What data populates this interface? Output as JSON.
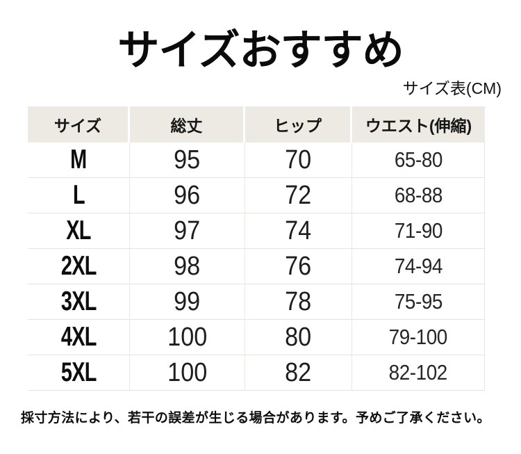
{
  "page": {
    "title": "サイズおすすめ",
    "unit_label": "サイズ表(CM)",
    "note": "採寸方法により、若干の誤差が生じる場合があります。予めご了承ください。"
  },
  "chart_data": {
    "type": "table",
    "title": "サイズおすすめ",
    "unit": "CM",
    "columns": [
      "サイズ",
      "総丈",
      "ヒップ",
      "ウエスト(伸縮)"
    ],
    "rows": [
      [
        "M",
        "95",
        "70",
        "65-80"
      ],
      [
        "L",
        "96",
        "72",
        "68-88"
      ],
      [
        "XL",
        "97",
        "74",
        "71-90"
      ],
      [
        "2XL",
        "98",
        "76",
        "74-94"
      ],
      [
        "3XL",
        "99",
        "78",
        "75-95"
      ],
      [
        "4XL",
        "100",
        "80",
        "79-100"
      ],
      [
        "5XL",
        "100",
        "82",
        "82-102"
      ]
    ],
    "footnote": "採寸方法により、若干の誤差が生じる場合があります。予めご了承ください。"
  },
  "colors": {
    "background": "#ffffff",
    "header_bg": "#edeae4",
    "grid_line": "#e4e2de",
    "text": "#111111"
  }
}
